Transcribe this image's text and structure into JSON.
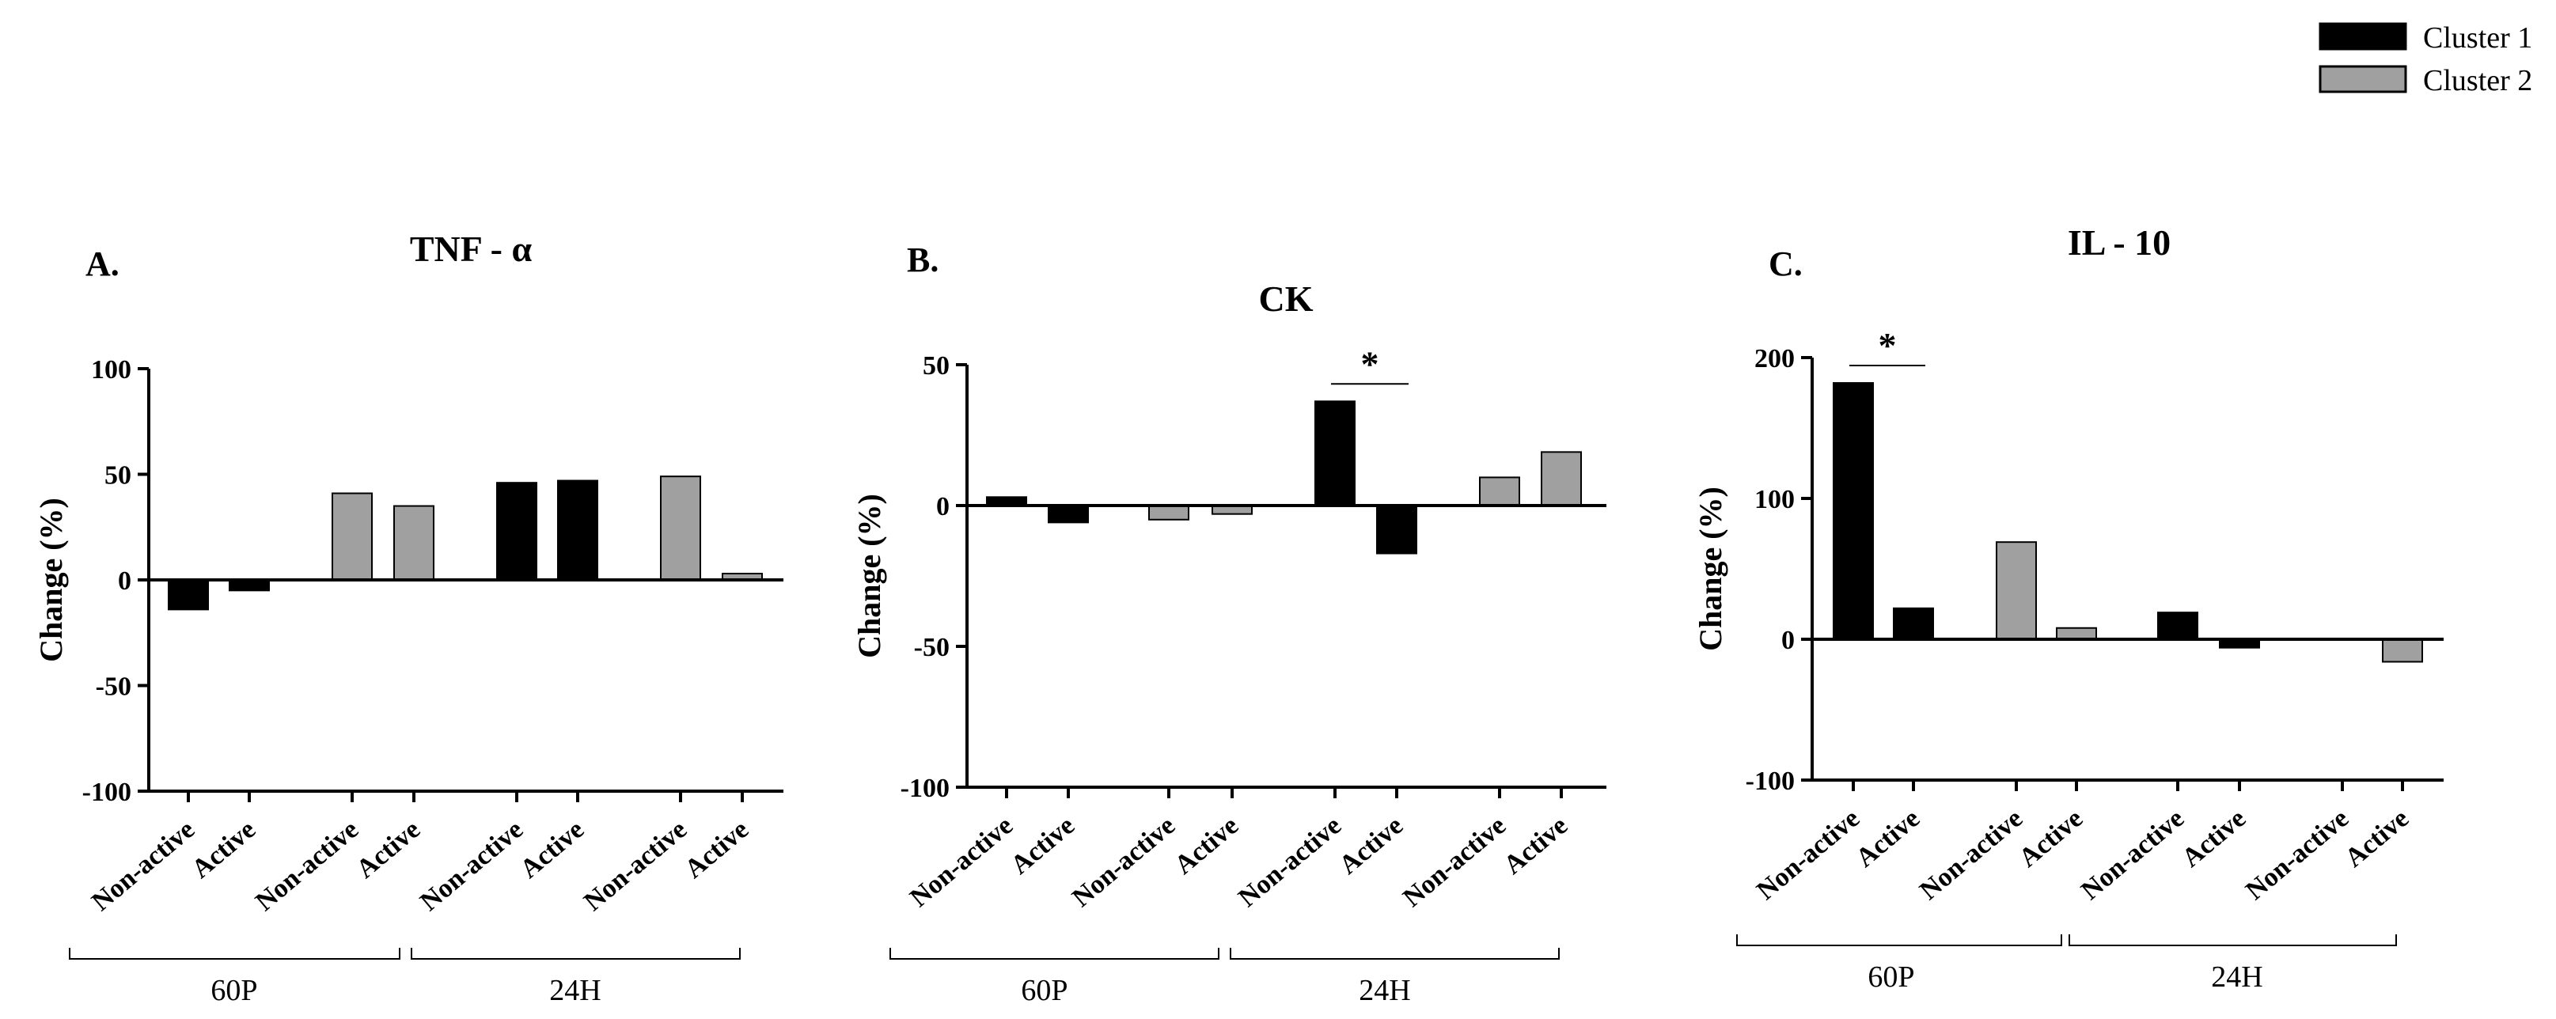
{
  "legend": [
    {
      "name": "Cluster 1",
      "color": "#000000"
    },
    {
      "name": "Cluster 2",
      "color": "#a0a0a0"
    }
  ],
  "group_labels": [
    "60P",
    "24H"
  ],
  "chart_data": [
    {
      "type": "bar",
      "panel": "A.",
      "title": "TNF - α",
      "ylabel": "Change (%)",
      "ylim": [
        -100,
        100
      ],
      "yticks": [
        100,
        50,
        0,
        -50,
        -100
      ],
      "categories": [
        "Non-active",
        "Active",
        "Non-active",
        "Active",
        "Non-active",
        "Active",
        "Non-active",
        "Active"
      ],
      "values": [
        -14,
        -5,
        41,
        35,
        46,
        47,
        49,
        3
      ],
      "clusters": [
        "Cluster 1",
        "Cluster 1",
        "Cluster 2",
        "Cluster 2",
        "Cluster 1",
        "Cluster 1",
        "Cluster 2",
        "Cluster 2"
      ],
      "groups": [
        "60P",
        "24H"
      ],
      "significance": []
    },
    {
      "type": "bar",
      "panel": "B.",
      "title": "CK",
      "ylabel": "Change (%)",
      "ylim": [
        -100,
        50
      ],
      "yticks": [
        50,
        0,
        -50,
        -100
      ],
      "categories": [
        "Non-active",
        "Active",
        "Non-active",
        "Active",
        "Non-active",
        "Active",
        "Non-active",
        "Active"
      ],
      "values": [
        3,
        -6,
        -5,
        -3,
        37,
        -17,
        10,
        19
      ],
      "clusters": [
        "Cluster 1",
        "Cluster 1",
        "Cluster 2",
        "Cluster 2",
        "Cluster 1",
        "Cluster 1",
        "Cluster 2",
        "Cluster 2"
      ],
      "groups": [
        "60P",
        "24H"
      ],
      "significance": [
        {
          "from": 4,
          "to": 5,
          "label": "*"
        }
      ]
    },
    {
      "type": "bar",
      "panel": "C.",
      "title": "IL - 10",
      "ylabel": "Change (%)",
      "ylim": [
        -100,
        200
      ],
      "yticks": [
        200,
        100,
        0,
        -100
      ],
      "categories": [
        "Non-active",
        "Active",
        "Non-active",
        "Active",
        "Non-active",
        "Active",
        "Non-active",
        "Active"
      ],
      "values": [
        182,
        22,
        69,
        8,
        19,
        -6,
        0,
        -16
      ],
      "clusters": [
        "Cluster 1",
        "Cluster 1",
        "Cluster 2",
        "Cluster 2",
        "Cluster 1",
        "Cluster 1",
        "Cluster 2",
        "Cluster 2"
      ],
      "groups": [
        "60P",
        "24H"
      ],
      "significance": [
        {
          "from": 0,
          "to": 1,
          "label": "*"
        }
      ]
    }
  ]
}
